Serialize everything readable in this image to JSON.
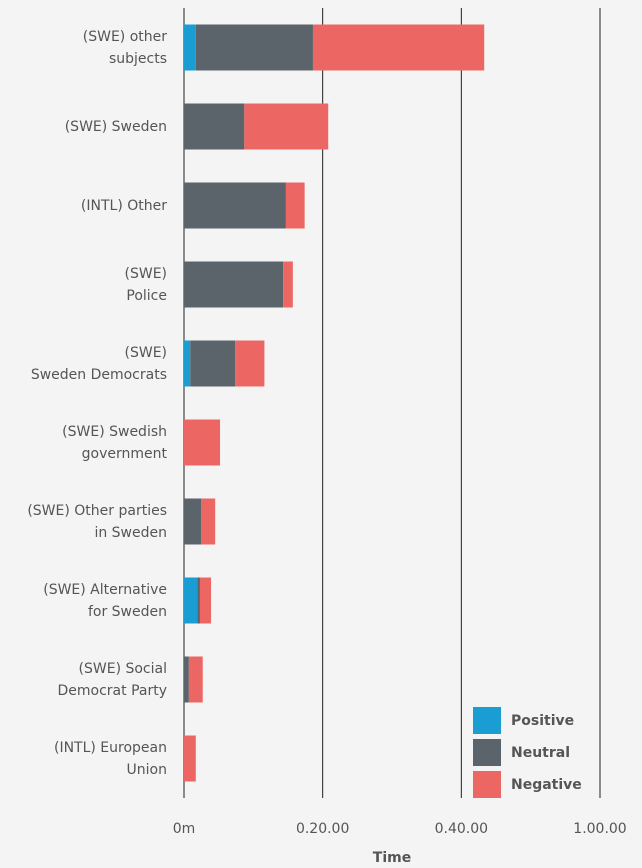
{
  "chart_data": {
    "type": "bar",
    "orientation": "horizontal",
    "stacked": true,
    "x_label": "Time",
    "categories": [
      "(SWE) other\nsubjects",
      "(SWE) Sweden",
      "(INTL) Other",
      "(SWE)\nPolice",
      "(SWE)\nSweden Democrats",
      "(SWE) Swedish\ngovernment",
      "(SWE) Other parties\nin Sweden",
      "(SWE) Alternative\nfor Sweden",
      "(SWE) Social\nDemocrat Party",
      "(INTL) European\nUnion"
    ],
    "series": [
      {
        "name": "Positive",
        "color": "#1a9dd3",
        "values": [
          1.7,
          0,
          0,
          0,
          0.9,
          0,
          0,
          1.9,
          0,
          0
        ]
      },
      {
        "name": "Neutral",
        "color": "#5b646b",
        "values": [
          16.9,
          8.7,
          14.7,
          14.3,
          6.5,
          0,
          2.5,
          0.4,
          0.7,
          0
        ]
      },
      {
        "name": "Negative",
        "color": "#ec6764",
        "values": [
          24.7,
          12.1,
          2.7,
          1.4,
          4.2,
          5.2,
          2.0,
          1.6,
          2.0,
          1.7
        ]
      }
    ],
    "xlim": [
      0,
      60
    ],
    "xticks": [
      {
        "value": 0,
        "label": "0m"
      },
      {
        "value": 20,
        "label": "0.20.00"
      },
      {
        "value": 40,
        "label": "0.40.00"
      },
      {
        "value": 60,
        "label": "1.00.00"
      }
    ],
    "grid": true,
    "legend": "bottom-right"
  }
}
